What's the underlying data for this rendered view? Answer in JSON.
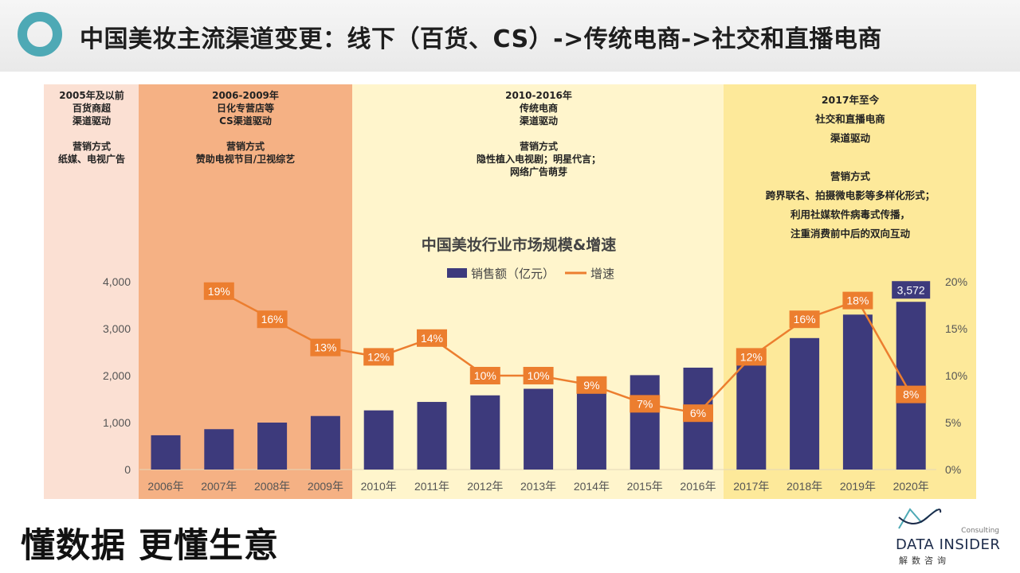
{
  "header": {
    "title": "中国美妆主流渠道变更：线下（百货、CS）->传统电商->社交和直播电商"
  },
  "eras": [
    {
      "text": "2005年及以前\n百货商超\n渠道驱动\n\n营销方式\n纸媒、电视广告",
      "color": "#fbe0d3"
    },
    {
      "text": "2006-2009年\n日化专营店等\nCS渠道驱动\n\n营销方式\n赞助电视节目/卫视综艺",
      "color": "#f5b184"
    },
    {
      "text": "2010-2016年\n传统电商\n渠道驱动\n\n营销方式\n隐性植入电视剧；明星代言；\n网络广告萌芽",
      "color": "#fff5cc"
    },
    {
      "text": "2017年至今\n社交和直播电商\n渠道驱动\n\n营销方式\n跨界联名、拍摄微电影等多样化形式；\n利用社媒软件病毒式传播，\n注重消费前中后的双向互动",
      "color": "#fde99a"
    }
  ],
  "chart_data": {
    "type": "bar+line",
    "title": "中国美妆行业市场规模&增速",
    "categories": [
      "2006年",
      "2007年",
      "2008年",
      "2009年",
      "2010年",
      "2011年",
      "2012年",
      "2013年",
      "2014年",
      "2015年",
      "2016年",
      "2017年",
      "2018年",
      "2019年",
      "2020年"
    ],
    "series": [
      {
        "name": "销售额（亿元）",
        "type": "bar",
        "axis": "left",
        "color": "#3d3a7c",
        "values": [
          730,
          860,
          1000,
          1140,
          1260,
          1440,
          1580,
          1720,
          1890,
          2010,
          2170,
          2510,
          2800,
          3300,
          3572
        ]
      },
      {
        "name": "增速",
        "type": "line",
        "axis": "right",
        "color": "#ec7e2f",
        "values": [
          null,
          19,
          16,
          13,
          12,
          14,
          10,
          10,
          9,
          7,
          6,
          12,
          16,
          18,
          8
        ]
      }
    ],
    "bar_value_labels": {
      "2020年": "3,572"
    },
    "line_value_labels": [
      "19%",
      "16%",
      "13%",
      "12%",
      "14%",
      "10%",
      "10%",
      "9%",
      "7%",
      "6%",
      "12%",
      "16%",
      "18%",
      "8%"
    ],
    "y_left": {
      "ylim": [
        0,
        4000
      ],
      "ticks": [
        0,
        1000,
        2000,
        3000,
        4000
      ],
      "tick_labels": [
        "0",
        "1,000",
        "2,000",
        "3,000",
        "4,000"
      ]
    },
    "y_right": {
      "ylim": [
        0,
        20
      ],
      "ticks": [
        0,
        5,
        10,
        15,
        20
      ],
      "tick_labels": [
        "0%",
        "5%",
        "10%",
        "15%",
        "20%"
      ]
    },
    "legend_position": "top-center",
    "grid": false
  },
  "footer": {
    "slogan": "懂数据 更懂生意",
    "brand_consult": "Consulting",
    "brand_name": "DATA INSIDER",
    "brand_cn": "解数咨询"
  }
}
